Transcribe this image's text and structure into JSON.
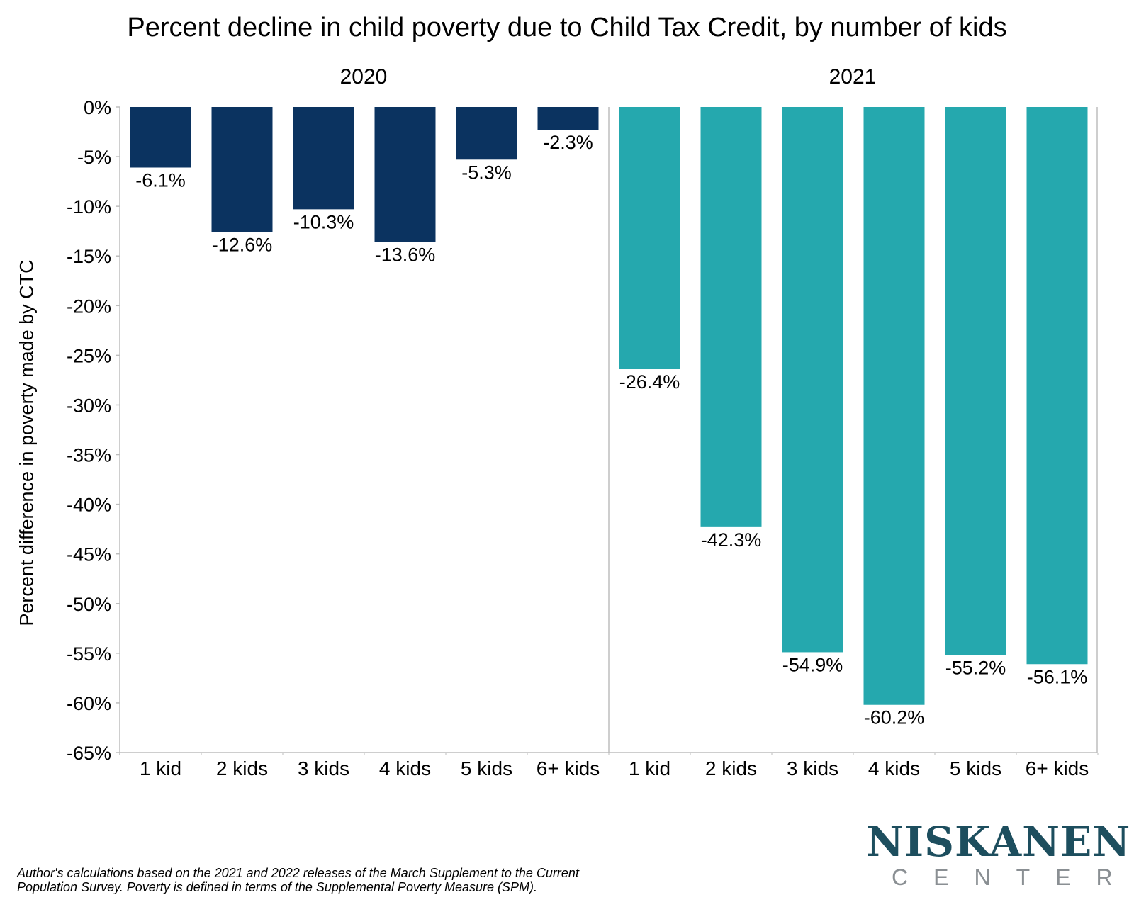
{
  "title": "Percent decline in child poverty due to Child Tax Credit, by number of kids",
  "footnote_lines": [
    "Author's calculations based on the 2021 and 2022 releases of the March Supplement to the Current",
    "Population Survey. Poverty is defined in terms of the Supplemental Poverty Measure (SPM)."
  ],
  "logo": {
    "top": "NISKANEN",
    "bottom": "CENTER"
  },
  "colors": {
    "2020": "#0b3360",
    "2021": "#25a8ae",
    "axis": "#bdbdbd"
  },
  "chart_data": {
    "type": "bar",
    "title": "Percent decline in child poverty due to Child Tax Credit, by number of kids",
    "ylabel": "Percent difference in poverty made by CTC",
    "xlabel": "",
    "ylim": [
      -65,
      0
    ],
    "yticks": [
      0,
      -5,
      -10,
      -15,
      -20,
      -25,
      -30,
      -35,
      -40,
      -45,
      -50,
      -55,
      -60,
      -65
    ],
    "ytick_labels": [
      "0%",
      "-5%",
      "-10%",
      "-15%",
      "-20%",
      "-25%",
      "-30%",
      "-35%",
      "-40%",
      "-45%",
      "-50%",
      "-55%",
      "-60%",
      "-65%"
    ],
    "grid": false,
    "panels": [
      {
        "name": "2020",
        "categories": [
          "1 kid",
          "2 kids",
          "3 kids",
          "4 kids",
          "5 kids",
          "6+ kids"
        ],
        "values": [
          -6.1,
          -12.6,
          -10.3,
          -13.6,
          -5.3,
          -2.3
        ],
        "labels": [
          "-6.1%",
          "-12.6%",
          "-10.3%",
          "-13.6%",
          "-5.3%",
          "-2.3%"
        ]
      },
      {
        "name": "2021",
        "categories": [
          "1 kid",
          "2 kids",
          "3 kids",
          "4 kids",
          "5 kids",
          "6+ kids"
        ],
        "values": [
          -26.4,
          -42.3,
          -54.9,
          -60.2,
          -55.2,
          -56.1
        ],
        "labels": [
          "-26.4%",
          "-42.3%",
          "-54.9%",
          "-60.2%",
          "-55.2%",
          "-56.1%"
        ]
      }
    ]
  }
}
